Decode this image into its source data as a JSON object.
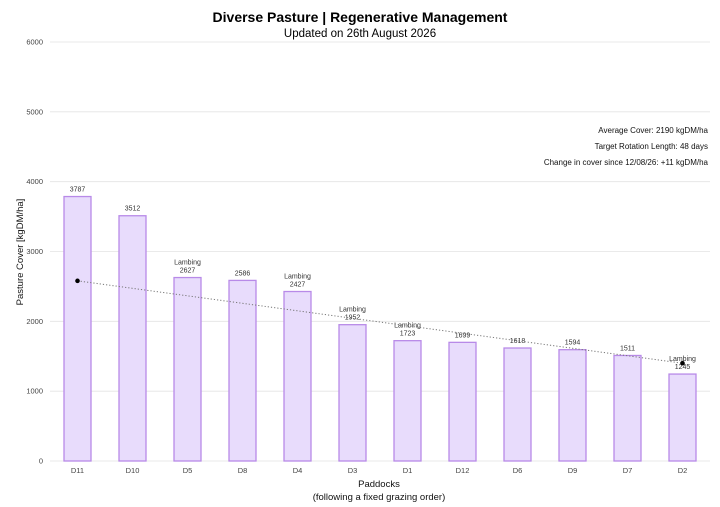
{
  "chart_data": {
    "type": "bar",
    "title": "Diverse Pasture | Regenerative Management",
    "subtitle": "Updated on 26th August 2026",
    "xlabel": "Paddocks",
    "xlabel_sub": "(following a fixed grazing order)",
    "ylabel": "Pasture Cover [kgDM/ha]",
    "ylim": [
      0,
      6000
    ],
    "yticks": [
      0,
      1000,
      2000,
      3000,
      4000,
      5000,
      6000
    ],
    "grid": true,
    "categories": [
      "D11",
      "D10",
      "D5",
      "D8",
      "D4",
      "D3",
      "D1",
      "D12",
      "D6",
      "D9",
      "D7",
      "D2"
    ],
    "values": [
      3787,
      3512,
      2627,
      2586,
      2427,
      1952,
      1723,
      1699,
      1618,
      1594,
      1511,
      1245
    ],
    "bar_notes": [
      "",
      "",
      "Lambing",
      "",
      "Lambing",
      "Lambing",
      "Lambing",
      "",
      "",
      "",
      "",
      "Lambing"
    ],
    "trend_line": {
      "style": "dotted",
      "start": {
        "category": "D11",
        "value": 2580
      },
      "end": {
        "category": "D2",
        "value": 1400
      }
    },
    "annotations": [
      "Average Cover: 2190 kgDM/ha",
      "Target Rotation Length: 48 days",
      "Change in cover since 12/08/26: +11 kgDM/ha"
    ],
    "colors": {
      "bar_fill": "#e8dcfc",
      "bar_stroke": "#b88ae8",
      "grid": "#e3e3e3",
      "trend": "#777777",
      "marker": "#000000"
    }
  }
}
